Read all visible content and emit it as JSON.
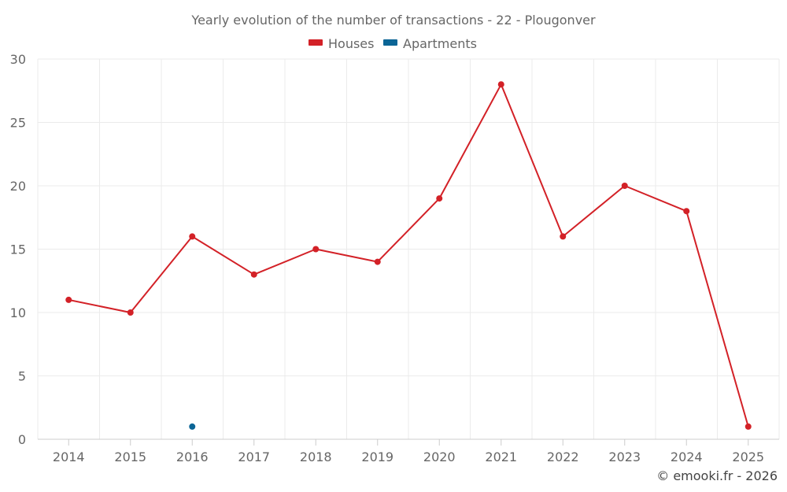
{
  "chart_data": {
    "type": "line",
    "title": "Yearly evolution of the number of transactions - 22 - Plougonver",
    "x": [
      "2014",
      "2015",
      "2016",
      "2017",
      "2018",
      "2019",
      "2020",
      "2021",
      "2022",
      "2023",
      "2024",
      "2025"
    ],
    "series": [
      {
        "name": "Houses",
        "color": "#d32127",
        "values": [
          11,
          10,
          16,
          13,
          15,
          14,
          19,
          28,
          16,
          20,
          18,
          1
        ]
      },
      {
        "name": "Apartments",
        "color": "#0b6596",
        "values": [
          null,
          null,
          1,
          null,
          null,
          null,
          null,
          null,
          null,
          null,
          null,
          null
        ]
      }
    ],
    "ylim": [
      0,
      30
    ],
    "yticks": [
      "0",
      "5",
      "10",
      "15",
      "20",
      "25",
      "30"
    ],
    "grid": true,
    "legend_position": "top-center",
    "credit": "© emooki.fr - 2026"
  }
}
